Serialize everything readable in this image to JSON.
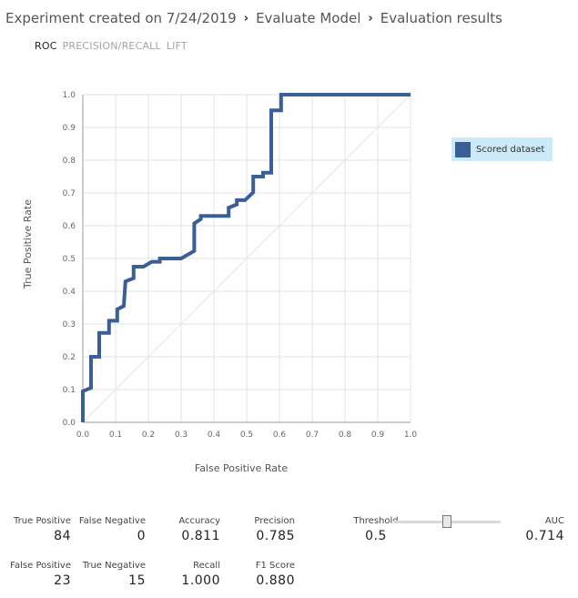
{
  "breadcrumb": {
    "part1": "Experiment created on 7/24/2019",
    "part2": "Evaluate Model",
    "part3": "Evaluation results",
    "separator": "›"
  },
  "tabs": [
    {
      "label": "ROC",
      "active": true
    },
    {
      "label": "PRECISION/RECALL",
      "active": false
    },
    {
      "label": "LIFT",
      "active": false
    }
  ],
  "legend": {
    "label": "Scored dataset",
    "color": "#3a5f95"
  },
  "chart_data": {
    "type": "line",
    "title": "",
    "xlabel": "False Positive Rate",
    "ylabel": "True Positive Rate",
    "xlim": [
      0,
      1
    ],
    "ylim": [
      0,
      1
    ],
    "xticks": [
      "0.0",
      "0.1",
      "0.2",
      "0.3",
      "0.4",
      "0.5",
      "0.6",
      "0.7",
      "0.8",
      "0.9",
      "1.0"
    ],
    "yticks": [
      "0.0",
      "0.1",
      "0.2",
      "0.3",
      "0.4",
      "0.5",
      "0.6",
      "0.7",
      "0.8",
      "0.9",
      "1.0"
    ],
    "grid": true,
    "diagonal": [
      [
        0,
        0
      ],
      [
        1,
        1
      ]
    ],
    "series": [
      {
        "name": "Scored dataset",
        "color": "#3a5f95",
        "points": [
          [
            0,
            0
          ],
          [
            0,
            0.095
          ],
          [
            0.025,
            0.105
          ],
          [
            0.025,
            0.2
          ],
          [
            0.05,
            0.2
          ],
          [
            0.05,
            0.273
          ],
          [
            0.08,
            0.273
          ],
          [
            0.08,
            0.31
          ],
          [
            0.105,
            0.31
          ],
          [
            0.105,
            0.345
          ],
          [
            0.125,
            0.355
          ],
          [
            0.13,
            0.43
          ],
          [
            0.155,
            0.44
          ],
          [
            0.155,
            0.475
          ],
          [
            0.185,
            0.475
          ],
          [
            0.21,
            0.49
          ],
          [
            0.235,
            0.49
          ],
          [
            0.235,
            0.5
          ],
          [
            0.3,
            0.5
          ],
          [
            0.34,
            0.523
          ],
          [
            0.34,
            0.607
          ],
          [
            0.36,
            0.62
          ],
          [
            0.36,
            0.63
          ],
          [
            0.445,
            0.63
          ],
          [
            0.445,
            0.655
          ],
          [
            0.47,
            0.665
          ],
          [
            0.47,
            0.678
          ],
          [
            0.495,
            0.678
          ],
          [
            0.52,
            0.702
          ],
          [
            0.52,
            0.75
          ],
          [
            0.55,
            0.75
          ],
          [
            0.55,
            0.762
          ],
          [
            0.575,
            0.762
          ],
          [
            0.575,
            0.952
          ],
          [
            0.605,
            0.952
          ],
          [
            0.605,
            1.0
          ],
          [
            1.0,
            1.0
          ]
        ]
      }
    ]
  },
  "metrics": {
    "true_positive": {
      "label": "True Positive",
      "value": "84"
    },
    "false_negative": {
      "label": "False Negative",
      "value": "0"
    },
    "accuracy": {
      "label": "Accuracy",
      "value": "0.811"
    },
    "precision": {
      "label": "Precision",
      "value": "0.785"
    },
    "threshold": {
      "label": "Threshold",
      "value": "0.5"
    },
    "auc": {
      "label": "AUC",
      "value": "0.714"
    },
    "false_positive": {
      "label": "False Positive",
      "value": "23"
    },
    "true_negative": {
      "label": "True Negative",
      "value": "15"
    },
    "recall": {
      "label": "Recall",
      "value": "1.000"
    },
    "f1_score": {
      "label": "F1 Score",
      "value": "0.880"
    }
  },
  "threshold_slider": {
    "value": 0.5
  }
}
